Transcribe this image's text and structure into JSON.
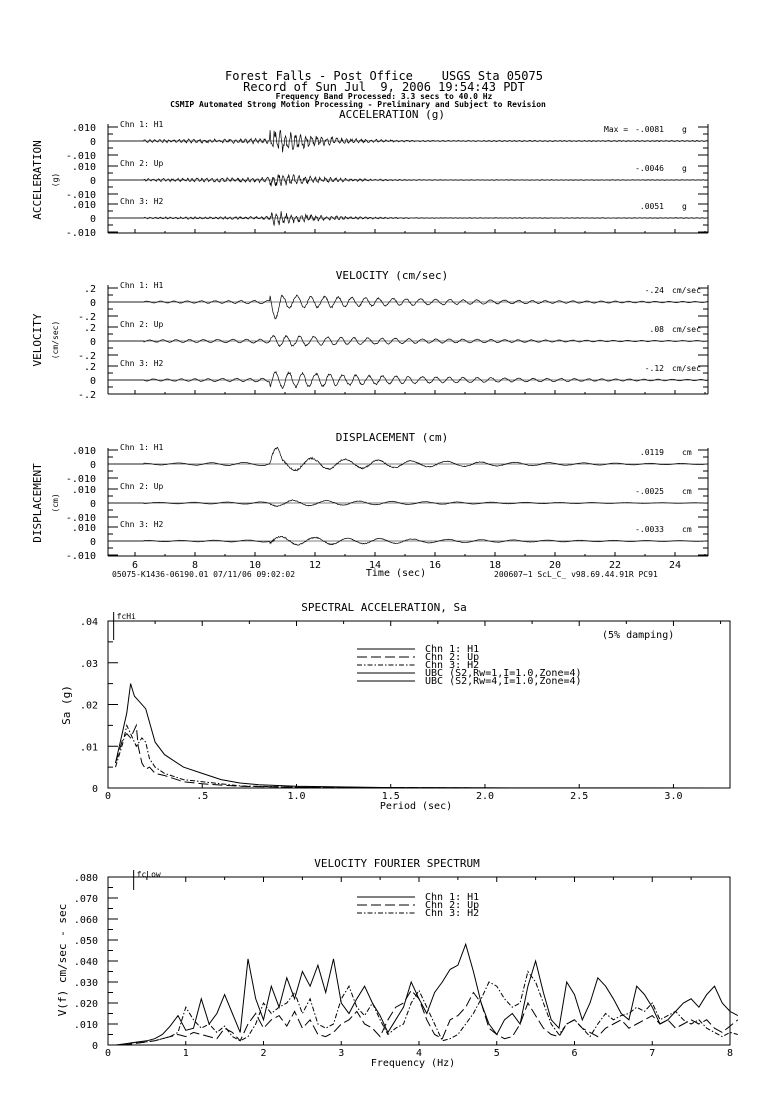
{
  "header": {
    "line1": "Forest Falls - Post Office    USGS Sta 05075",
    "line2": "Record of Sun Jul  9, 2006 19:54:43 PDT",
    "line3": "Frequency Band Processed: 3.3 secs to 40.0 Hz",
    "line4": "CSMIP Automated Strong Motion Processing - Preliminary and Subject to Revision"
  },
  "chart_data": [
    {
      "type": "line",
      "title": "ACCELERATION (g)",
      "ylabel": "ACCELERATION",
      "yunit": "(g)",
      "yticks": [
        ".010",
        "0",
        "-.010"
      ],
      "ylim": [
        -0.01,
        0.01
      ],
      "xlim": [
        5.1,
        25.1
      ],
      "max_prefix": "Max =",
      "channels": [
        {
          "name": "Chn 1: H1",
          "peak": -0.0081,
          "peak_text": "-.0081",
          "unit": "g"
        },
        {
          "name": "Chn 2: Up",
          "peak": -0.0046,
          "peak_text": "-.0046",
          "unit": "g"
        },
        {
          "name": "Chn 3: H2",
          "peak": 0.0051,
          "peak_text": ".0051",
          "unit": "g"
        }
      ]
    },
    {
      "type": "line",
      "title": "VELOCITY (cm/sec)",
      "ylabel": "VELOCITY",
      "yunit": "(cm/sec)",
      "yticks": [
        ".2",
        "0",
        "-.2"
      ],
      "ylim": [
        -0.2,
        0.2
      ],
      "xlim": [
        5.1,
        25.1
      ],
      "channels": [
        {
          "name": "Chn 1: H1",
          "peak": -0.24,
          "peak_text": "-.24",
          "unit": "cm/sec"
        },
        {
          "name": "Chn 2: Up",
          "peak": 0.08,
          "peak_text": ".08",
          "unit": "cm/sec"
        },
        {
          "name": "Chn 3: H2",
          "peak": -0.12,
          "peak_text": "-.12",
          "unit": "cm/sec"
        }
      ]
    },
    {
      "type": "line",
      "title": "DISPLACEMENT (cm)",
      "ylabel": "DISPLACEMENT",
      "yunit": "(cm)",
      "yticks": [
        ".010",
        "0",
        "-.010"
      ],
      "ylim": [
        -0.01,
        0.01
      ],
      "xlim": [
        5.1,
        25.1
      ],
      "xlabel": "Time (sec)",
      "xticks": [
        "6",
        "8",
        "10",
        "12",
        "14",
        "16",
        "18",
        "20",
        "22",
        "24"
      ],
      "footer_left": "05075-K1436-06190.01 07/11/06 09:02:02",
      "footer_right": "200607~1  ScL_C_  v98.69.44.91R PC91",
      "channels": [
        {
          "name": "Chn 1: H1",
          "peak": 0.0119,
          "peak_text": ".0119",
          "unit": "cm"
        },
        {
          "name": "Chn 2: Up",
          "peak": -0.0025,
          "peak_text": "-.0025",
          "unit": "cm"
        },
        {
          "name": "Chn 3: H2",
          "peak": -0.0033,
          "peak_text": "-.0033",
          "unit": "cm"
        }
      ]
    },
    {
      "type": "line",
      "title": "SPECTRAL ACCELERATION, Sa",
      "xlabel": "Period (sec)",
      "ylabel": "Sa (g)",
      "xlim": [
        0,
        3.3
      ],
      "ylim": [
        0,
        0.04
      ],
      "xticks": [
        "0",
        ".5",
        "1.0",
        "1.5",
        "2.0",
        "2.5",
        "3.0"
      ],
      "yticks": [
        ".04",
        ".03",
        ".02",
        ".01",
        "0"
      ],
      "annotation": "(5% damping)",
      "marker": {
        "label": "fcHi",
        "x": 0.03
      },
      "legend": [
        "Chn 1: H1",
        "Chn 2: Up",
        "Chn 3: H2",
        "UBC (S2,Rw=1,I=1.0,Zone=4)",
        "UBC (S2,Rw=4,I=1.0,Zone=4)"
      ],
      "series": [
        {
          "name": "Chn 1: H1",
          "style": "solid",
          "x": [
            0.04,
            0.06,
            0.08,
            0.1,
            0.12,
            0.14,
            0.16,
            0.2,
            0.25,
            0.3,
            0.4,
            0.5,
            0.6,
            0.7,
            0.8,
            1.0,
            1.5,
            2.0,
            3.3
          ],
          "y": [
            0.006,
            0.01,
            0.014,
            0.018,
            0.025,
            0.022,
            0.021,
            0.019,
            0.011,
            0.008,
            0.005,
            0.0035,
            0.002,
            0.0012,
            0.0008,
            0.0004,
            0.0001,
            5e-05,
            0
          ]
        },
        {
          "name": "Chn 2: Up",
          "style": "dashed",
          "x": [
            0.04,
            0.08,
            0.1,
            0.12,
            0.15,
            0.16,
            0.18,
            0.2,
            0.22,
            0.25,
            0.3,
            0.4,
            0.5,
            0.7,
            1.0,
            2.0
          ],
          "y": [
            0.006,
            0.012,
            0.013,
            0.012,
            0.015,
            0.01,
            0.006,
            0.0045,
            0.005,
            0.0035,
            0.003,
            0.0015,
            0.001,
            0.0004,
            0.0002,
            0
          ]
        },
        {
          "name": "Chn 3: H2",
          "style": "dashdot",
          "x": [
            0.04,
            0.08,
            0.1,
            0.12,
            0.15,
            0.18,
            0.2,
            0.22,
            0.25,
            0.3,
            0.4,
            0.5,
            0.7,
            1.0,
            2.0
          ],
          "y": [
            0.005,
            0.011,
            0.015,
            0.013,
            0.01,
            0.012,
            0.011,
            0.007,
            0.005,
            0.0035,
            0.002,
            0.0015,
            0.0005,
            0.0002,
            0
          ]
        }
      ]
    },
    {
      "type": "line",
      "title": "VELOCITY FOURIER SPECTRUM",
      "xlabel": "Frequency (Hz)",
      "ylabel": "V(f)   cm/sec - sec",
      "xlim": [
        0,
        8
      ],
      "ylim": [
        0,
        0.08
      ],
      "xticks": [
        "0",
        "1",
        "2",
        "3",
        "4",
        "5",
        "6",
        "7",
        "8"
      ],
      "yticks": [
        ".080",
        ".070",
        ".060",
        ".050",
        ".040",
        ".030",
        ".020",
        ".010",
        "0"
      ],
      "marker": {
        "label": "fcLow",
        "x": 0.33
      },
      "legend": [
        "Chn 1: H1",
        "Chn 2: Up",
        "Chn 3: H2"
      ],
      "x_step_hz": 0.1,
      "series_units": "0.001 cm/sec-sec",
      "series": [
        {
          "name": "Chn 1: H1",
          "style": "solid",
          "y": [
            0,
            0,
            0.5,
            1,
            1.5,
            2,
            3,
            5,
            9,
            14,
            7,
            8,
            22,
            10,
            15,
            24,
            15,
            6,
            41,
            22,
            12,
            28,
            18,
            32,
            22,
            35,
            28,
            38,
            25,
            41,
            20,
            15,
            22,
            28,
            20,
            14,
            6,
            12,
            18,
            30,
            22,
            15,
            25,
            30,
            36,
            38,
            48,
            35,
            20,
            10,
            5,
            12,
            15,
            10,
            28,
            40,
            25,
            12,
            8,
            30,
            24,
            12,
            20,
            32,
            28,
            22,
            15,
            12,
            28,
            24,
            18,
            10,
            12,
            16,
            20,
            22,
            18,
            24,
            28,
            20,
            16,
            14
          ]
        },
        {
          "name": "Chn 2: Up",
          "style": "dashed",
          "y": [
            0,
            0,
            0,
            0.5,
            1,
            1.5,
            2,
            3,
            4,
            5,
            4,
            6,
            5,
            4,
            3,
            8,
            6,
            2,
            10,
            15,
            8,
            12,
            14,
            9,
            16,
            8,
            12,
            5,
            4,
            6,
            10,
            12,
            16,
            10,
            8,
            4,
            12,
            18,
            20,
            26,
            22,
            12,
            5,
            3,
            12,
            14,
            18,
            25,
            20,
            8,
            5,
            3,
            4,
            10,
            20,
            14,
            8,
            5,
            4,
            10,
            12,
            8,
            6,
            4,
            8,
            10,
            12,
            8,
            10,
            12,
            14,
            10,
            12,
            8,
            10,
            12,
            10,
            12,
            8,
            6,
            9,
            12
          ]
        },
        {
          "name": "Chn 3: H2",
          "style": "dashdot",
          "y": [
            0,
            0,
            0,
            1,
            1,
            1.5,
            2,
            3,
            4,
            6,
            18,
            12,
            8,
            10,
            6,
            9,
            4,
            2,
            4,
            10,
            20,
            15,
            18,
            20,
            25,
            15,
            22,
            10,
            8,
            10,
            22,
            28,
            18,
            14,
            20,
            12,
            5,
            8,
            10,
            20,
            26,
            18,
            10,
            2,
            3,
            5,
            10,
            15,
            22,
            30,
            28,
            22,
            18,
            20,
            35,
            30,
            20,
            10,
            5,
            10,
            12,
            8,
            4,
            10,
            15,
            12,
            14,
            15,
            18,
            16,
            20,
            12,
            14,
            16,
            12,
            10,
            12,
            8,
            6,
            4,
            6,
            5
          ]
        }
      ]
    }
  ]
}
